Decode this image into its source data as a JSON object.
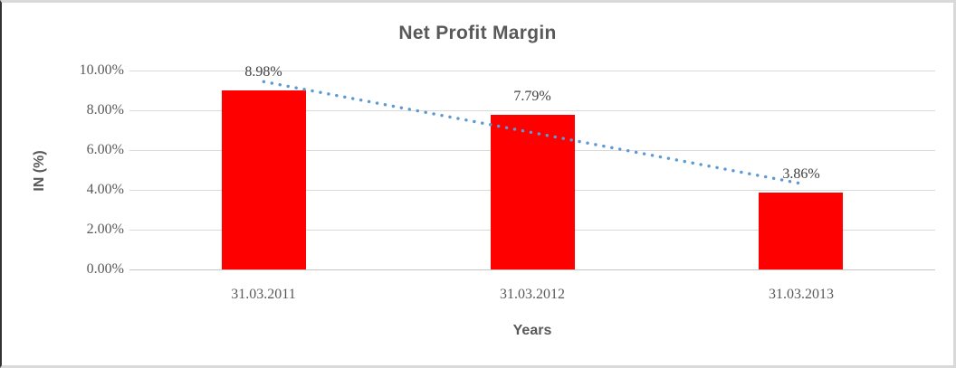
{
  "chart_data": {
    "type": "bar",
    "title": "Net Profit Margin",
    "xlabel": "Years",
    "ylabel": "IN (%)",
    "categories": [
      "31.03.2011",
      "31.03.2012",
      "31.03.2013"
    ],
    "values": [
      8.98,
      7.79,
      3.86
    ],
    "data_labels": [
      "8.98%",
      "7.79%",
      "3.86%"
    ],
    "ylim": [
      0,
      10
    ],
    "yticks": [
      0,
      2,
      4,
      6,
      8,
      10
    ],
    "ytick_labels": [
      "0.00%",
      "2.00%",
      "4.00%",
      "6.00%",
      "8.00%",
      "10.00%"
    ],
    "grid": true,
    "legend": false,
    "bar_color": "#ff0000",
    "trendline": {
      "type": "linear",
      "style": "dotted",
      "color": "#5b9bd5",
      "start_value": 9.44,
      "end_value": 4.32
    },
    "colors": {
      "title_text": "#595959",
      "axis_text": "#595959",
      "data_label_text": "#404040",
      "gridline": "#d9d9d9",
      "axis_line": "#c6c6c6"
    }
  }
}
